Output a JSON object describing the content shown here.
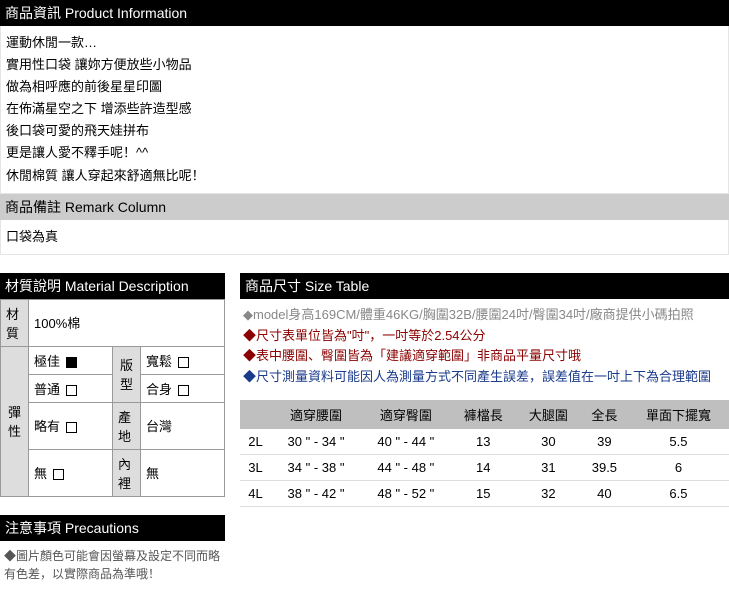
{
  "product_info": {
    "header": "商品資訊 Product Information",
    "lines": [
      "運動休閒一款…",
      "實用性口袋 讓妳方便放些小物品",
      "做為相呼應的前後星星印圖",
      "在佈滿星空之下 增添些許造型感",
      "後口袋可愛的飛天娃拼布",
      "更是讓人愛不釋手呢！^^",
      "休閒棉質 讓人穿起來舒適無比呢！"
    ]
  },
  "remark": {
    "header": "商品備註 Remark Column",
    "text": "口袋為真"
  },
  "material": {
    "header": "材質說明 Material Description",
    "material_row": {
      "label": "材質",
      "value": "100%棉"
    },
    "elastic_label": "彈性",
    "elastic_options": [
      {
        "name": "極佳",
        "selected": true
      },
      {
        "name": "普通",
        "selected": false
      },
      {
        "name": "略有",
        "selected": false
      },
      {
        "name": "無",
        "selected": false
      }
    ],
    "fit_label": "版型",
    "fit_options": [
      {
        "name": "寬鬆",
        "selected": false
      },
      {
        "name": "合身",
        "selected": false
      }
    ],
    "origin": {
      "label": "產地",
      "value": "台灣"
    },
    "lining": {
      "label": "內裡",
      "value": "無"
    }
  },
  "precautions": {
    "header": "注意事項 Precautions",
    "text": "◆圖片顏色可能會因螢幕及設定不同而略有色差，以實際商品為準哦！"
  },
  "size": {
    "header": "商品尺寸 Size Table",
    "notes": [
      {
        "text": "◆model身高169CM/體重46KG/胸圍32B/腰圍24吋/臀圍34吋/廠商提供小碼拍照",
        "color": "#888888"
      },
      {
        "text": "◆尺寸表單位皆為\"吋\"，一吋等於2.54公分",
        "color": "#8b0000"
      },
      {
        "text": "◆表中腰圍、臀圍皆為「建議適穿範圍」非商品平量尺寸哦",
        "color": "#8b0000"
      },
      {
        "text": "◆尺寸測量資料可能因人為測量方式不同產生誤差，誤差值在一吋上下為合理範圍",
        "color": "#1a3a8a"
      }
    ],
    "columns": [
      "",
      "適穿腰圍",
      "適穿臀圍",
      "褲檔長",
      "大腿圍",
      "全長",
      "單面下擺寬"
    ],
    "rows": [
      [
        "2L",
        "30 \" - 34 \"",
        "40 \" - 44 \"",
        "13",
        "30",
        "39",
        "5.5"
      ],
      [
        "3L",
        "34 \" - 38 \"",
        "44 \" - 48 \"",
        "14",
        "31",
        "39.5",
        "6"
      ],
      [
        "4L",
        "38 \" - 42 \"",
        "48 \" - 52 \"",
        "15",
        "32",
        "40",
        "6.5"
      ]
    ]
  },
  "colors": {
    "header_bg": "#000000",
    "header_fg": "#ffffff",
    "subheader_bg": "#cccccc",
    "table_header_bg": "#bfbfbf",
    "note_grey": "#888888",
    "note_red": "#8b0000",
    "note_blue": "#1a3a8a"
  }
}
